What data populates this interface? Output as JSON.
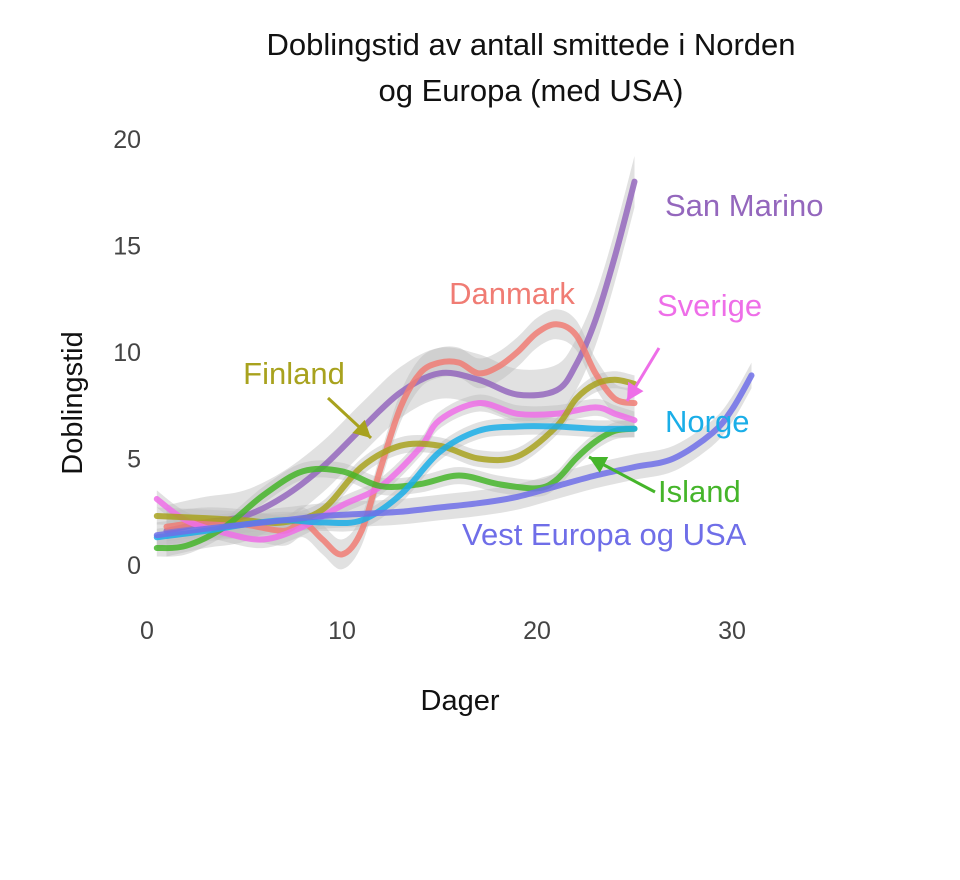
{
  "chart_data": {
    "type": "line",
    "title_lines": [
      "Doblingstid av antall smittede i Norden",
      "og Europa (med USA)"
    ],
    "xlabel": "Dager",
    "ylabel": "Doblingstid",
    "xlim": [
      0,
      33
    ],
    "ylim": [
      -1.5,
      20.5
    ],
    "x_ticks": [
      0,
      10,
      20,
      30
    ],
    "y_ticks": [
      0,
      5,
      10,
      15,
      20
    ],
    "grid": false,
    "legend": "direct labels",
    "series": [
      {
        "name": "San Marino",
        "color": "#9467bd",
        "band": 1.2,
        "points": [
          [
            1,
            1.6
          ],
          [
            3,
            2.0
          ],
          [
            5,
            2.3
          ],
          [
            7,
            3.2
          ],
          [
            9,
            4.6
          ],
          [
            11,
            6.4
          ],
          [
            13,
            8.1
          ],
          [
            15,
            9.0
          ],
          [
            17,
            8.7
          ],
          [
            19,
            8.0
          ],
          [
            21,
            8.2
          ],
          [
            22,
            9.4
          ],
          [
            23,
            11.5
          ],
          [
            24,
            14.5
          ],
          [
            25,
            18.0
          ]
        ]
      },
      {
        "name": "Danmark",
        "color": "#f07c74",
        "band": 0.7,
        "points": [
          [
            1,
            1.8
          ],
          [
            3,
            2.0
          ],
          [
            5,
            1.9
          ],
          [
            7,
            1.6
          ],
          [
            8,
            2.0
          ],
          [
            9,
            1.2
          ],
          [
            10,
            0.5
          ],
          [
            11,
            1.6
          ],
          [
            12,
            4.6
          ],
          [
            13,
            7.4
          ],
          [
            14,
            9.0
          ],
          [
            15,
            9.5
          ],
          [
            16,
            9.5
          ],
          [
            17,
            9.0
          ],
          [
            18,
            9.3
          ],
          [
            19,
            10.0
          ],
          [
            20,
            10.9
          ],
          [
            21,
            11.3
          ],
          [
            22,
            10.8
          ],
          [
            23,
            9.0
          ],
          [
            24,
            7.8
          ],
          [
            25,
            7.6
          ]
        ]
      },
      {
        "name": "Sverige",
        "color": "#ee6ee8",
        "band": 0.4,
        "points": [
          [
            0.5,
            3.1
          ],
          [
            2,
            2.1
          ],
          [
            4,
            1.5
          ],
          [
            6,
            1.2
          ],
          [
            8,
            1.8
          ],
          [
            10,
            2.8
          ],
          [
            12,
            3.7
          ],
          [
            14,
            5.5
          ],
          [
            15,
            6.8
          ],
          [
            17,
            7.6
          ],
          [
            19,
            7.1
          ],
          [
            21,
            7.1
          ],
          [
            23,
            7.4
          ],
          [
            24,
            7.1
          ],
          [
            25,
            6.8
          ]
        ]
      },
      {
        "name": "Finland",
        "color": "#a8a21e",
        "band": 0.4,
        "points": [
          [
            0.5,
            2.3
          ],
          [
            3,
            2.2
          ],
          [
            5,
            2.1
          ],
          [
            7,
            2.0
          ],
          [
            9,
            2.6
          ],
          [
            11,
            4.6
          ],
          [
            13,
            5.6
          ],
          [
            15,
            5.6
          ],
          [
            17,
            5.0
          ],
          [
            19,
            5.1
          ],
          [
            21,
            6.5
          ],
          [
            22,
            7.8
          ],
          [
            23,
            8.5
          ],
          [
            24,
            8.7
          ],
          [
            25,
            8.5
          ]
        ]
      },
      {
        "name": "Island",
        "color": "#45b52a",
        "band": 0.4,
        "points": [
          [
            0.5,
            0.8
          ],
          [
            2,
            0.9
          ],
          [
            4,
            1.8
          ],
          [
            6,
            3.3
          ],
          [
            8,
            4.4
          ],
          [
            10,
            4.4
          ],
          [
            12,
            3.7
          ],
          [
            14,
            3.8
          ],
          [
            16,
            4.2
          ],
          [
            18,
            3.8
          ],
          [
            20,
            3.6
          ],
          [
            21,
            4.0
          ],
          [
            22,
            5.0
          ],
          [
            23,
            5.8
          ],
          [
            24,
            6.3
          ],
          [
            25,
            6.4
          ]
        ]
      },
      {
        "name": "Norge",
        "color": "#1aaee8",
        "band": 0.4,
        "points": [
          [
            0.5,
            1.3
          ],
          [
            3,
            1.6
          ],
          [
            5,
            1.9
          ],
          [
            7,
            2.1
          ],
          [
            9,
            2.0
          ],
          [
            11,
            2.1
          ],
          [
            13,
            3.3
          ],
          [
            15,
            5.3
          ],
          [
            17,
            6.3
          ],
          [
            19,
            6.5
          ],
          [
            21,
            6.5
          ],
          [
            23,
            6.4
          ],
          [
            25,
            6.4
          ]
        ]
      },
      {
        "name": "Vest Europa og USA",
        "color": "#6f6ee8",
        "band": 0.6,
        "points": [
          [
            0.5,
            1.4
          ],
          [
            3,
            1.7
          ],
          [
            5,
            1.9
          ],
          [
            7,
            2.1
          ],
          [
            9,
            2.3
          ],
          [
            11,
            2.4
          ],
          [
            13,
            2.5
          ],
          [
            15,
            2.7
          ],
          [
            17,
            2.9
          ],
          [
            19,
            3.2
          ],
          [
            21,
            3.7
          ],
          [
            23,
            4.2
          ],
          [
            25,
            4.6
          ],
          [
            27,
            5.0
          ],
          [
            29,
            6.2
          ],
          [
            30,
            7.3
          ],
          [
            31,
            8.9
          ]
        ]
      }
    ]
  }
}
